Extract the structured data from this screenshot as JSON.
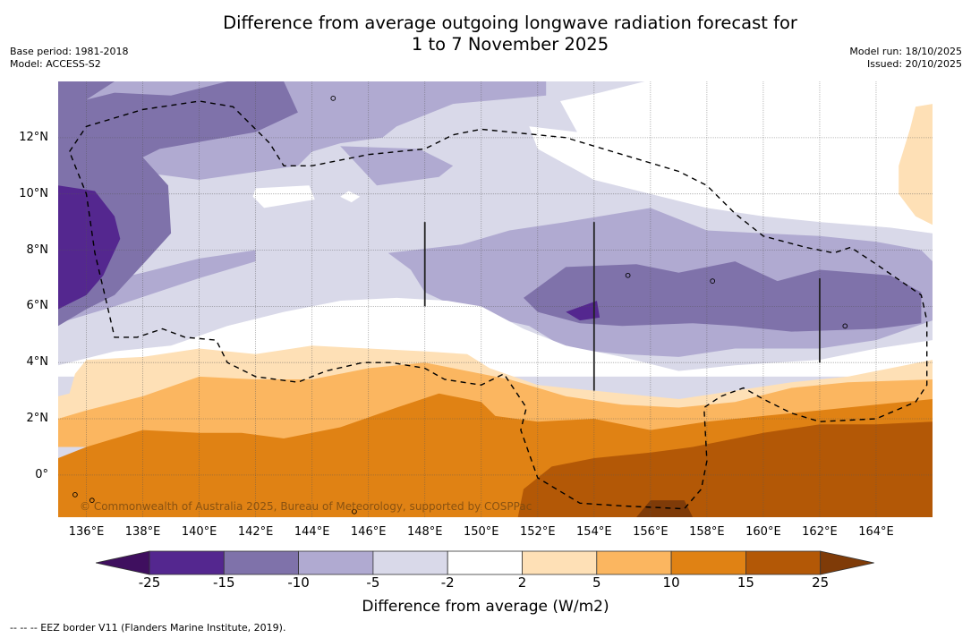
{
  "header": {
    "title_line1": "Difference from average outgoing longwave radiation forecast for",
    "title_line2": "1 to 7 November 2025",
    "base_period": "Base period: 1981-2018",
    "model": "Model: ACCESS-S2",
    "model_run": "Model run: 18/10/2025",
    "issued": "Issued: 20/10/2025"
  },
  "map": {
    "lon_range": [
      135,
      166
    ],
    "lat_range": [
      -1.5,
      14
    ],
    "lat_ticks": [
      {
        "value": 12,
        "label": "12°N"
      },
      {
        "value": 10,
        "label": "10°N"
      },
      {
        "value": 8,
        "label": "8°N"
      },
      {
        "value": 6,
        "label": "6°N"
      },
      {
        "value": 4,
        "label": "4°N"
      },
      {
        "value": 2,
        "label": "2°N"
      },
      {
        "value": 0,
        "label": "0°"
      }
    ],
    "lon_ticks": [
      {
        "value": 136,
        "label": "136°E"
      },
      {
        "value": 138,
        "label": "138°E"
      },
      {
        "value": 140,
        "label": "140°E"
      },
      {
        "value": 142,
        "label": "142°E"
      },
      {
        "value": 144,
        "label": "144°E"
      },
      {
        "value": 146,
        "label": "146°E"
      },
      {
        "value": 148,
        "label": "148°E"
      },
      {
        "value": 150,
        "label": "150°E"
      },
      {
        "value": 152,
        "label": "152°E"
      },
      {
        "value": 154,
        "label": "154°E"
      },
      {
        "value": 156,
        "label": "156°E"
      },
      {
        "value": 158,
        "label": "158°E"
      },
      {
        "value": 160,
        "label": "160°E"
      },
      {
        "value": 162,
        "label": "162°E"
      },
      {
        "value": 164,
        "label": "164°E"
      }
    ],
    "copyright": "© Commonwealth of Australia 2025, Bureau of Meteorology, supported by COSPPac"
  },
  "colorbar": {
    "label": "Difference from average (W/m2)",
    "ticks": [
      "-25",
      "-15",
      "-10",
      "-5",
      "-2",
      "2",
      "5",
      "10",
      "15",
      "25"
    ],
    "extend_low_color": "#3f0f5f",
    "extend_high_color": "#7f3b08",
    "bins": [
      {
        "range": "-25 to -15",
        "color": "#54278f"
      },
      {
        "range": "-15 to -10",
        "color": "#7f72aa"
      },
      {
        "range": "-10 to -5",
        "color": "#b0aad1"
      },
      {
        "range": "-5 to -2",
        "color": "#d9d9e9"
      },
      {
        "range": "-2 to 2",
        "color": "#ffffff"
      },
      {
        "range": "2 to 5",
        "color": "#fee0b6"
      },
      {
        "range": "5 to 10",
        "color": "#fbb660"
      },
      {
        "range": "10 to 15",
        "color": "#e08214"
      },
      {
        "range": "15 to 25",
        "color": "#b35806"
      }
    ]
  },
  "footer": {
    "eez_legend": "--  --  -- EEZ border V11 (Flanders Marine Institute, 2019)."
  }
}
